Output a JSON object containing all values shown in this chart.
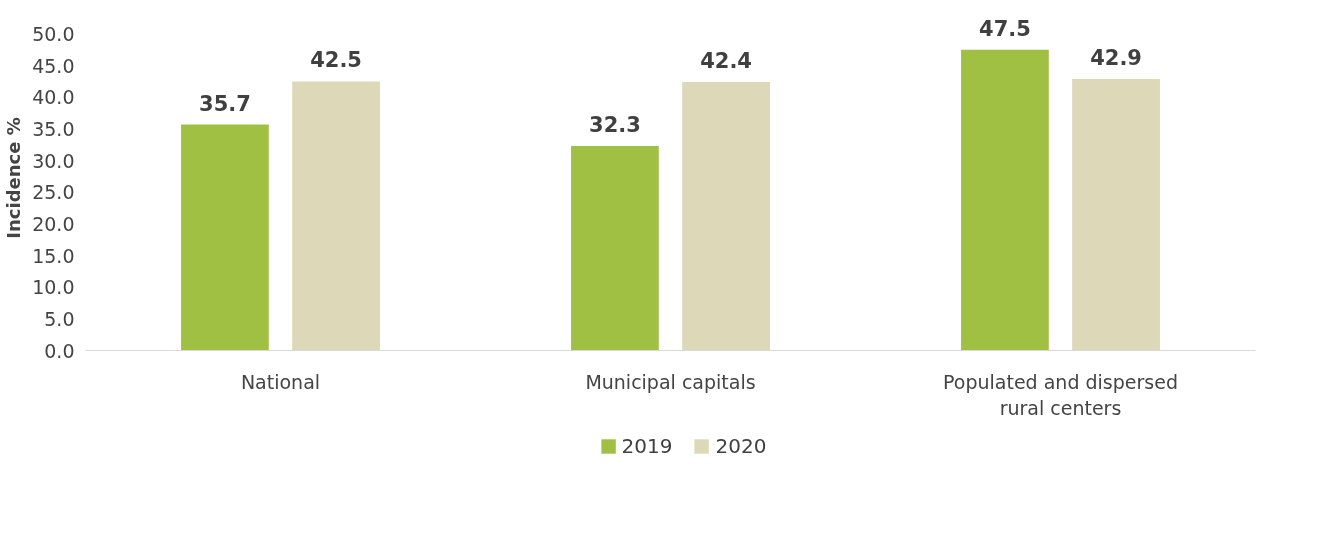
{
  "chart_data": {
    "type": "bar",
    "ylabel": "Incidence %",
    "categories": [
      "National",
      "Municipal capitals",
      "Populated and dispersed\nrural centers"
    ],
    "series": [
      {
        "name": "2019",
        "color": "#9fc043",
        "values": [
          35.7,
          32.3,
          47.5
        ]
      },
      {
        "name": "2020",
        "color": "#dcd8b8",
        "values": [
          42.5,
          42.4,
          42.9
        ]
      }
    ],
    "ylim": [
      0,
      50
    ],
    "yticks": [
      {
        "value": 0,
        "label": "0.0"
      },
      {
        "value": 5,
        "label": "5.0"
      },
      {
        "value": 10,
        "label": "10.0"
      },
      {
        "value": 15,
        "label": "15.0"
      },
      {
        "value": 20,
        "label": "20.0"
      },
      {
        "value": 25,
        "label": "25.0"
      },
      {
        "value": 30,
        "label": "30.0"
      },
      {
        "value": 35,
        "label": "35.0"
      },
      {
        "value": 40,
        "label": "40.0"
      },
      {
        "value": 45,
        "label": "45.0"
      },
      {
        "value": 50,
        "label": "50.0"
      }
    ],
    "grid": false,
    "legend": "bottom",
    "data_labels": true
  }
}
